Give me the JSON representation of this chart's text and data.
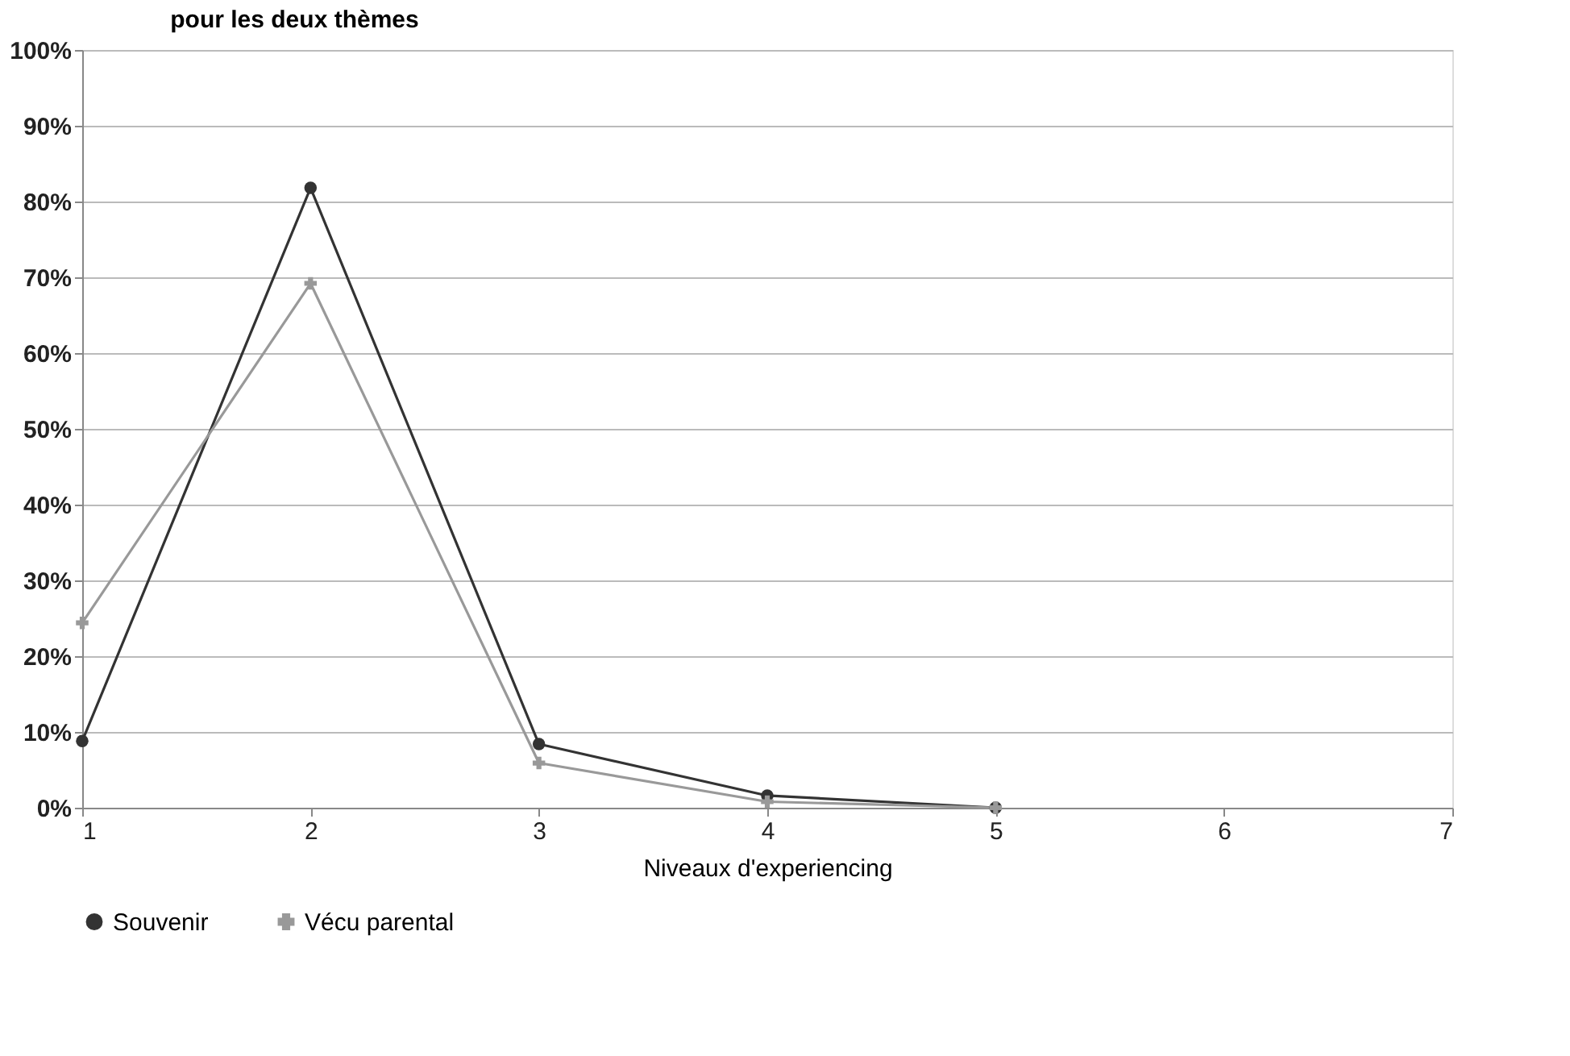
{
  "chart_data": {
    "type": "line",
    "title": "pour les deux thèmes",
    "xlabel": "Niveaux d'experiencing",
    "x": [
      1,
      2,
      3,
      4,
      5
    ],
    "series": [
      {
        "name": "Souvenir",
        "color": "#333333",
        "marker": "circle",
        "values": [
          8.8,
          81.8,
          8.4,
          1.6,
          0
        ]
      },
      {
        "name": "Vécu parental",
        "color": "#999999",
        "marker": "cross",
        "values": [
          24.4,
          69.2,
          5.9,
          0.8,
          0
        ]
      }
    ],
    "xlim": [
      1,
      7
    ],
    "xticks": [
      1,
      2,
      3,
      4,
      5,
      6,
      7
    ],
    "ylim": [
      0,
      100
    ],
    "yticks": [
      {
        "value": 0,
        "label": "0%"
      },
      {
        "value": 10,
        "label": "10%"
      },
      {
        "value": 20,
        "label": "20%"
      },
      {
        "value": 30,
        "label": "30%"
      },
      {
        "value": 40,
        "label": "40%"
      },
      {
        "value": 50,
        "label": "50%"
      },
      {
        "value": 60,
        "label": "60%"
      },
      {
        "value": 70,
        "label": "70%"
      },
      {
        "value": 80,
        "label": "80%"
      },
      {
        "value": 90,
        "label": "90%"
      },
      {
        "value": 100,
        "label": "100%"
      }
    ],
    "grid": "y",
    "legend": "bottom",
    "line_style": "solid"
  }
}
